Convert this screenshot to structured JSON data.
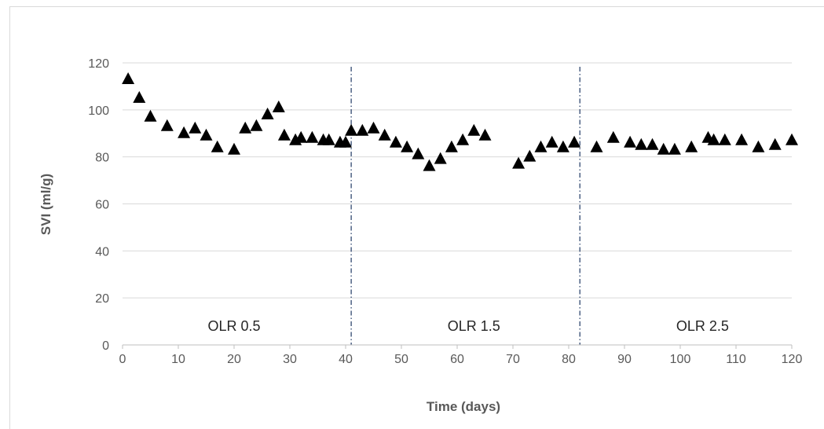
{
  "chart_data": {
    "type": "scatter",
    "xlabel": "Time (days)",
    "ylabel": "SVI (ml/g)",
    "xlim": [
      0,
      120
    ],
    "ylim": [
      0,
      120
    ],
    "x_ticks": [
      0,
      10,
      20,
      30,
      40,
      50,
      60,
      70,
      80,
      90,
      100,
      110,
      120
    ],
    "y_ticks": [
      0,
      20,
      40,
      60,
      80,
      100,
      120
    ],
    "grid": "horizontal",
    "marker": "triangle",
    "marker_color": "#000000",
    "dividers_x": [
      41,
      82
    ],
    "regions": [
      {
        "label": "OLR 0.5",
        "x": 20,
        "y": 8
      },
      {
        "label": "OLR 1.5",
        "x": 63,
        "y": 8
      },
      {
        "label": "OLR 2.5",
        "x": 104,
        "y": 8
      }
    ],
    "points": [
      {
        "x": 1,
        "y": 113
      },
      {
        "x": 3,
        "y": 105
      },
      {
        "x": 5,
        "y": 97
      },
      {
        "x": 8,
        "y": 93
      },
      {
        "x": 11,
        "y": 90
      },
      {
        "x": 13,
        "y": 92
      },
      {
        "x": 15,
        "y": 89
      },
      {
        "x": 17,
        "y": 84
      },
      {
        "x": 20,
        "y": 83
      },
      {
        "x": 22,
        "y": 92
      },
      {
        "x": 24,
        "y": 93
      },
      {
        "x": 26,
        "y": 98
      },
      {
        "x": 28,
        "y": 101
      },
      {
        "x": 29,
        "y": 89
      },
      {
        "x": 31,
        "y": 87
      },
      {
        "x": 32,
        "y": 88
      },
      {
        "x": 34,
        "y": 88
      },
      {
        "x": 36,
        "y": 87
      },
      {
        "x": 37,
        "y": 87
      },
      {
        "x": 39,
        "y": 86
      },
      {
        "x": 40,
        "y": 86
      },
      {
        "x": 41,
        "y": 91
      },
      {
        "x": 43,
        "y": 91
      },
      {
        "x": 45,
        "y": 92
      },
      {
        "x": 47,
        "y": 89
      },
      {
        "x": 49,
        "y": 86
      },
      {
        "x": 51,
        "y": 84
      },
      {
        "x": 53,
        "y": 81
      },
      {
        "x": 55,
        "y": 76
      },
      {
        "x": 57,
        "y": 79
      },
      {
        "x": 59,
        "y": 84
      },
      {
        "x": 61,
        "y": 87
      },
      {
        "x": 63,
        "y": 91
      },
      {
        "x": 65,
        "y": 89
      },
      {
        "x": 71,
        "y": 77
      },
      {
        "x": 73,
        "y": 80
      },
      {
        "x": 75,
        "y": 84
      },
      {
        "x": 77,
        "y": 86
      },
      {
        "x": 79,
        "y": 84
      },
      {
        "x": 81,
        "y": 86
      },
      {
        "x": 85,
        "y": 84
      },
      {
        "x": 88,
        "y": 88
      },
      {
        "x": 91,
        "y": 86
      },
      {
        "x": 93,
        "y": 85
      },
      {
        "x": 95,
        "y": 85
      },
      {
        "x": 97,
        "y": 83
      },
      {
        "x": 99,
        "y": 83
      },
      {
        "x": 102,
        "y": 84
      },
      {
        "x": 105,
        "y": 88
      },
      {
        "x": 106,
        "y": 87
      },
      {
        "x": 108,
        "y": 87
      },
      {
        "x": 111,
        "y": 87
      },
      {
        "x": 114,
        "y": 84
      },
      {
        "x": 117,
        "y": 85
      },
      {
        "x": 120,
        "y": 87
      }
    ]
  }
}
